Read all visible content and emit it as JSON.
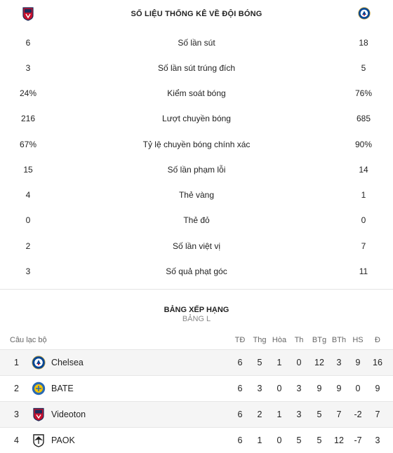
{
  "stats": {
    "title": "SỐ LIỆU THỐNG KÊ VỀ ĐỘI BÓNG",
    "home_crest_icon": "videoton-crest-icon",
    "away_crest_icon": "chelsea-crest-icon",
    "rows": [
      {
        "home": "6",
        "label": "Số lần sút",
        "away": "18"
      },
      {
        "home": "3",
        "label": "Số lần sút trúng đích",
        "away": "5"
      },
      {
        "home": "24%",
        "label": "Kiểm soát bóng",
        "away": "76%"
      },
      {
        "home": "216",
        "label": "Lượt chuyền bóng",
        "away": "685"
      },
      {
        "home": "67%",
        "label": "Tỷ lệ chuyền bóng chính xác",
        "away": "90%"
      },
      {
        "home": "15",
        "label": "Số lần phạm lỗi",
        "away": "14"
      },
      {
        "home": "4",
        "label": "Thẻ vàng",
        "away": "1"
      },
      {
        "home": "0",
        "label": "Thẻ đỏ",
        "away": "0"
      },
      {
        "home": "2",
        "label": "Số lần việt vị",
        "away": "7"
      },
      {
        "home": "3",
        "label": "Số quả phạt góc",
        "away": "11"
      }
    ]
  },
  "standings": {
    "title": "BẢNG XẾP HẠNG",
    "group": "BẢNG L",
    "headers": {
      "club": "Câu lạc bộ",
      "td": "TĐ",
      "thg": "Thg",
      "hoa": "Hòa",
      "th": "Th",
      "btg": "BTg",
      "bth": "BTh",
      "hs": "HS",
      "d": "Đ"
    },
    "rows": [
      {
        "rank": "1",
        "team": "Chelsea",
        "td": "6",
        "thg": "5",
        "hoa": "1",
        "th": "0",
        "btg": "12",
        "bth": "3",
        "hs": "9",
        "d": "16",
        "icon": "chelsea-crest-icon"
      },
      {
        "rank": "2",
        "team": "BATE",
        "td": "6",
        "thg": "3",
        "hoa": "0",
        "th": "3",
        "btg": "9",
        "bth": "9",
        "hs": "0",
        "d": "9",
        "icon": "bate-crest-icon"
      },
      {
        "rank": "3",
        "team": "Videoton",
        "td": "6",
        "thg": "2",
        "hoa": "1",
        "th": "3",
        "btg": "5",
        "bth": "7",
        "hs": "-2",
        "d": "7",
        "icon": "videoton-crest-icon"
      },
      {
        "rank": "4",
        "team": "PAOK",
        "td": "6",
        "thg": "1",
        "hoa": "0",
        "th": "5",
        "btg": "5",
        "bth": "12",
        "hs": "-7",
        "d": "3",
        "icon": "paok-crest-icon"
      }
    ]
  },
  "colors": {
    "videoton_red": "#c8102e",
    "videoton_navy": "#1d2b5a",
    "chelsea_blue": "#034694",
    "bate_blue": "#2a6ab3",
    "bate_yellow": "#f5c400",
    "paok_black": "#222222"
  }
}
